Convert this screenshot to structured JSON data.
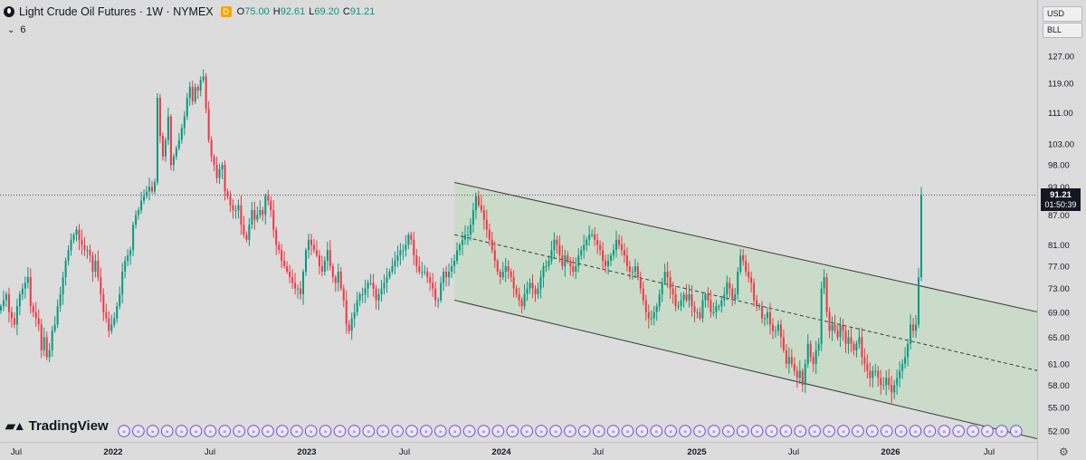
{
  "header": {
    "title": "Light Crude Oil Futures · 1W · NYMEX",
    "badge": "D",
    "ohlc": [
      {
        "k": "O",
        "v": "75.00"
      },
      {
        "k": "H",
        "v": "92.61"
      },
      {
        "k": "L",
        "v": "69.20"
      },
      {
        "k": "C",
        "v": "91.21"
      }
    ],
    "indicator_toggle": "6"
  },
  "controls": {
    "currency": "USD",
    "unit": "BLL"
  },
  "price_axis": {
    "ticks": [
      "127.00",
      "119.00",
      "111.00",
      "103.00",
      "98.00",
      "93.00",
      "87.00",
      "81.00",
      "77.00",
      "73.00",
      "69.00",
      "65.00",
      "61.00",
      "58.00",
      "55.00",
      "52.00"
    ],
    "current_price": "91.21",
    "countdown": "01:50:39"
  },
  "time_axis": {
    "labels": [
      {
        "t": "Jul",
        "bold": false
      },
      {
        "t": "2022",
        "bold": true
      },
      {
        "t": "Jul",
        "bold": false
      },
      {
        "t": "2023",
        "bold": true
      },
      {
        "t": "Jul",
        "bold": false
      },
      {
        "t": "2024",
        "bold": true
      },
      {
        "t": "Jul",
        "bold": false
      },
      {
        "t": "2025",
        "bold": true
      },
      {
        "t": "Jul",
        "bold": false
      },
      {
        "t": "2026",
        "bold": true
      },
      {
        "t": "Jul",
        "bold": false
      }
    ]
  },
  "branding": {
    "logo_text": "TradingView"
  },
  "colors": {
    "up": "#089981",
    "down": "#f23645",
    "channel_fill": "#c7dcc5",
    "channel_line": "#3a3a3a",
    "background": "#dcdcdc"
  },
  "chart_data": {
    "type": "candlestick",
    "title": "Light Crude Oil Futures · 1W · NYMEX",
    "timeframe": "1W",
    "scale": "log",
    "y_range": [
      50,
      135
    ],
    "x_range": [
      "2021-06",
      "2026-09"
    ],
    "last_close": 91.21,
    "weekly_closes": [
      70,
      71,
      72,
      69,
      68,
      67,
      70,
      72,
      73,
      74,
      75,
      70,
      69,
      68,
      67,
      63,
      65,
      62,
      63,
      66,
      67,
      70,
      72,
      75,
      78,
      80,
      82,
      83,
      84,
      82,
      81,
      80,
      80,
      79,
      76,
      78,
      75,
      72,
      69,
      68,
      66,
      67,
      68,
      70,
      72,
      76,
      78,
      79,
      80,
      85,
      87,
      88,
      90,
      91,
      92,
      93,
      92,
      94,
      115,
      105,
      100,
      104,
      110,
      98,
      100,
      102,
      104,
      107,
      110,
      115,
      118,
      114,
      118,
      117,
      120,
      121,
      112,
      104,
      100,
      98,
      95,
      97,
      98,
      92,
      91,
      89,
      88,
      88,
      89,
      85,
      83,
      82,
      85,
      88,
      86,
      87,
      88,
      87,
      91,
      90,
      88,
      84,
      81,
      80,
      78,
      77,
      76,
      75,
      74,
      73,
      73,
      72,
      76,
      80,
      82,
      81,
      80,
      79,
      77,
      76,
      78,
      80,
      77,
      75,
      74,
      76,
      73,
      71,
      67,
      66,
      68,
      69,
      71,
      72,
      72,
      73,
      74,
      74,
      73,
      71,
      72,
      73,
      74,
      75,
      76,
      77,
      78,
      79,
      80,
      80,
      81,
      83,
      82,
      79,
      77,
      76,
      76,
      76,
      75,
      74,
      73,
      71,
      71,
      74,
      76,
      75,
      76,
      77,
      78,
      80,
      81,
      82,
      83,
      83,
      85,
      88,
      91,
      89,
      88,
      86,
      84,
      82,
      80,
      78,
      76,
      75,
      76,
      77,
      76,
      75,
      73,
      72,
      71,
      70,
      72,
      73,
      74,
      73,
      72,
      73,
      75,
      77,
      77,
      78,
      80,
      82,
      81,
      79,
      77,
      79,
      78,
      77,
      76,
      77,
      79,
      80,
      81,
      82,
      83,
      83,
      82,
      81,
      80,
      78,
      77,
      78,
      79,
      80,
      82,
      81,
      80,
      79,
      77,
      76,
      76,
      77,
      75,
      73,
      71,
      69,
      68,
      68,
      69,
      70,
      72,
      74,
      76,
      75,
      73,
      72,
      70,
      70,
      71,
      72,
      71,
      72,
      70,
      69,
      69,
      68,
      71,
      72,
      71,
      69,
      69,
      70,
      70,
      71,
      72,
      74,
      73,
      71,
      72,
      76,
      79,
      78,
      76,
      75,
      74,
      71,
      70,
      70,
      68,
      68,
      69,
      67,
      66,
      66,
      67,
      65,
      63,
      61,
      62,
      61,
      60,
      59,
      60,
      58,
      61,
      64,
      62,
      61,
      63,
      64,
      73,
      75,
      69,
      66,
      67,
      66,
      65,
      67,
      66,
      64,
      65,
      64,
      63,
      64,
      65,
      62,
      61,
      60,
      59,
      60,
      60,
      59,
      58,
      58,
      59,
      58,
      57,
      58,
      59,
      60,
      61,
      62,
      64,
      67,
      66,
      67,
      75,
      91.21
    ],
    "channel": {
      "start": {
        "date": "2023-09",
        "upper": 94,
        "mid": 83,
        "lower": 71
      },
      "end": {
        "date": "2026-09",
        "upper": 69,
        "mid": 60,
        "lower": 51
      }
    },
    "xlabel": "",
    "ylabel": ""
  }
}
